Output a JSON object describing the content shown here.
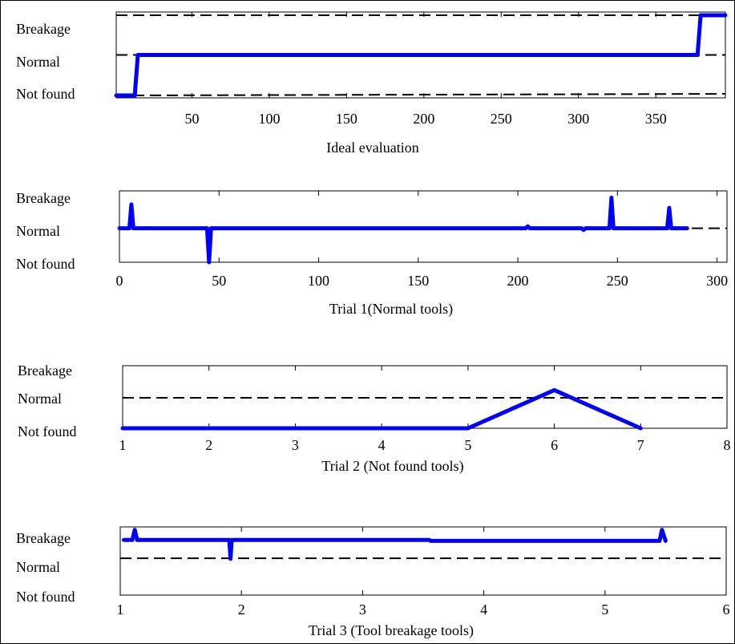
{
  "figure": {
    "frame": true
  },
  "colors": {
    "series": "#0000ff",
    "reference": "#000000",
    "axes": "#000000"
  },
  "chart_data": [
    {
      "type": "line",
      "xlabel": "Ideal evaluation",
      "y_levels": [
        "Not found",
        "Normal",
        "Breakage"
      ],
      "y_level_values": [
        0,
        1,
        2
      ],
      "xlim": [
        1,
        395
      ],
      "ylim": [
        -0.08,
        2.08
      ],
      "x_ticks": [
        50,
        100,
        150,
        200,
        250,
        300,
        350
      ],
      "reference_lines": [
        {
          "style": "dashed",
          "points": [
            [
              1,
              2.0
            ],
            [
              395,
              2.0
            ]
          ]
        },
        {
          "style": "dashed",
          "points": [
            [
              1,
              1.0
            ],
            [
              395,
              1.0
            ]
          ]
        },
        {
          "style": "dashed",
          "points": [
            [
              1,
              -0.02
            ],
            [
              395,
              0.02
            ]
          ]
        }
      ],
      "series": [
        {
          "points": [
            [
              1,
              -0.02
            ],
            [
              13,
              -0.02
            ],
            [
              15,
              1.0
            ],
            [
              377,
              1.0
            ],
            [
              379,
              2.0
            ],
            [
              395,
              2.0
            ]
          ]
        }
      ]
    },
    {
      "type": "line",
      "xlabel": "Trial 1(Normal tools)",
      "y_levels": [
        "Not found",
        "Normal",
        "Breakage"
      ],
      "y_level_values": [
        0,
        1,
        2
      ],
      "xlim": [
        0,
        305
      ],
      "ylim": [
        0,
        2.1
      ],
      "x_ticks": [
        0,
        50,
        100,
        150,
        200,
        250,
        300
      ],
      "reference_lines": [
        {
          "style": "dashed",
          "points": [
            [
              0,
              1.0
            ],
            [
              305,
              1.0
            ]
          ]
        }
      ],
      "series": [
        {
          "points": [
            [
              0,
              1.0
            ],
            [
              5,
              1.0
            ],
            [
              6,
              1.7
            ],
            [
              7,
              1.0
            ],
            [
              44,
              1.0
            ],
            [
              45,
              0.0
            ],
            [
              46,
              1.0
            ],
            [
              204,
              1.0
            ],
            [
              205,
              1.06
            ],
            [
              206,
              1.0
            ],
            [
              232,
              1.0
            ],
            [
              233,
              0.95
            ],
            [
              234,
              1.0
            ],
            [
              246,
              1.0
            ],
            [
              247,
              1.9
            ],
            [
              248,
              1.0
            ],
            [
              275,
              1.0
            ],
            [
              276,
              1.6
            ],
            [
              277,
              1.0
            ],
            [
              285,
              1.0
            ]
          ]
        }
      ]
    },
    {
      "type": "line",
      "xlabel": "Trial 2 (Not found tools)",
      "y_levels": [
        "Not found",
        "Normal",
        "Breakage"
      ],
      "y_level_values": [
        0,
        1,
        2
      ],
      "xlim": [
        1,
        8
      ],
      "ylim": [
        0,
        2.05
      ],
      "x_ticks": [
        1,
        2,
        3,
        4,
        5,
        6,
        7,
        8
      ],
      "reference_lines": [
        {
          "style": "dashed",
          "points": [
            [
              1,
              1.0
            ],
            [
              8,
              1.0
            ]
          ]
        }
      ],
      "series": [
        {
          "points": [
            [
              1,
              0
            ],
            [
              5,
              0
            ],
            [
              6,
              1.25
            ],
            [
              7,
              0
            ]
          ]
        }
      ]
    },
    {
      "type": "line",
      "xlabel": "Trial 3 (Tool breakage tools)",
      "y_levels": [
        "Not found",
        "Normal",
        "Breakage"
      ],
      "y_level_values": [
        0,
        1,
        2
      ],
      "xlim": [
        1,
        6
      ],
      "ylim": [
        -0.35,
        2.0
      ],
      "x_ticks": [
        1,
        2,
        3,
        4,
        5,
        6
      ],
      "reference_lines": [
        {
          "style": "dashed",
          "points": [
            [
              1,
              0.92
            ],
            [
              6,
              0.92
            ]
          ]
        }
      ],
      "series": [
        {
          "points": [
            [
              1.03,
              1.55
            ],
            [
              1.1,
              1.55
            ],
            [
              1.12,
              1.9
            ],
            [
              1.14,
              1.55
            ],
            [
              1.9,
              1.55
            ],
            [
              1.91,
              0.9
            ],
            [
              1.92,
              1.55
            ],
            [
              3.55,
              1.55
            ],
            [
              3.56,
              1.52
            ],
            [
              5.45,
              1.52
            ],
            [
              5.47,
              1.9
            ],
            [
              5.5,
              1.52
            ]
          ]
        }
      ]
    }
  ]
}
